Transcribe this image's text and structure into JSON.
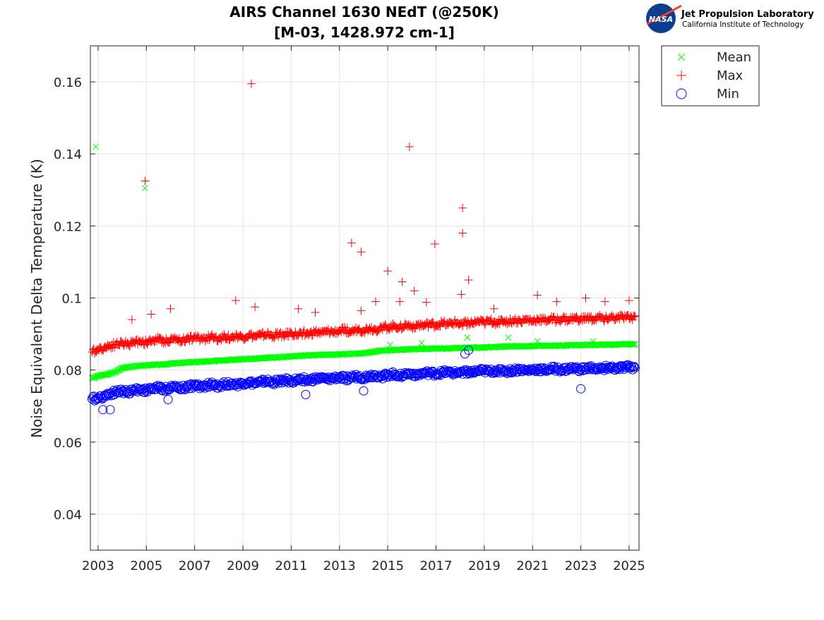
{
  "logo": {
    "org": "Jet Propulsion Laboratory",
    "sub": "California Institute of Technology",
    "mark": "NASA"
  },
  "chart_data": {
    "type": "scatter",
    "title": [
      "AIRS Channel 1630 NEdT (@250K)",
      "[M-03, 1428.972 cm-1]"
    ],
    "xlabel": "",
    "ylabel": "Noise Equivalent Delta Temperature (K)",
    "xlim": [
      2002.68,
      2025.41
    ],
    "ylim": [
      0.03,
      0.17
    ],
    "xticks": [
      2003,
      2005,
      2007,
      2009,
      2011,
      2013,
      2015,
      2017,
      2019,
      2021,
      2023,
      2025
    ],
    "yticks": [
      0.04,
      0.06,
      0.08,
      0.1,
      0.12,
      0.14,
      0.16
    ],
    "ytick_labels": [
      "0.04",
      "0.06",
      "0.08",
      "0.1",
      "0.12",
      "0.14",
      "0.16"
    ],
    "grid": true,
    "legend_placement": "outside-top-right",
    "x": [
      2002.75,
      2003,
      2003.25,
      2003.5,
      2003.75,
      2004,
      2004.25,
      2004.5,
      2004.75,
      2005,
      2005.25,
      2005.5,
      2005.75,
      2006,
      2006.25,
      2006.5,
      2006.75,
      2007,
      2007.25,
      2007.5,
      2007.75,
      2008,
      2008.25,
      2008.5,
      2008.75,
      2009,
      2009.25,
      2009.5,
      2009.75,
      2010,
      2010.25,
      2010.5,
      2010.75,
      2011,
      2011.25,
      2011.5,
      2011.75,
      2012,
      2012.25,
      2012.5,
      2012.75,
      2013,
      2013.25,
      2013.5,
      2013.75,
      2014,
      2014.25,
      2014.5,
      2014.75,
      2015,
      2015.25,
      2015.5,
      2015.75,
      2016,
      2016.25,
      2016.5,
      2016.75,
      2017,
      2017.25,
      2017.5,
      2017.75,
      2018,
      2018.25,
      2018.5,
      2018.75,
      2019,
      2019.25,
      2019.5,
      2019.75,
      2020,
      2020.25,
      2020.5,
      2020.75,
      2021,
      2021.25,
      2021.5,
      2021.75,
      2022,
      2022.25,
      2022.5,
      2022.75,
      2023,
      2023.25,
      2023.5,
      2023.75,
      2024,
      2024.25,
      2024.5,
      2024.75,
      2025,
      2025.25
    ],
    "series": [
      {
        "name": "Mean",
        "marker": "x",
        "color": "#00ff00",
        "values": [
          0.0778,
          0.0783,
          0.0787,
          0.079,
          0.0795,
          0.0805,
          0.0808,
          0.081,
          0.0812,
          0.0813,
          0.0814,
          0.0815,
          0.0816,
          0.0818,
          0.0819,
          0.082,
          0.0821,
          0.0822,
          0.0823,
          0.0824,
          0.0825,
          0.0826,
          0.0827,
          0.0828,
          0.0829,
          0.083,
          0.0831,
          0.0832,
          0.0833,
          0.0834,
          0.0835,
          0.0836,
          0.0837,
          0.0838,
          0.0839,
          0.084,
          0.0841,
          0.0842,
          0.0842,
          0.0843,
          0.0843,
          0.0844,
          0.0845,
          0.0845,
          0.0846,
          0.0847,
          0.0848,
          0.0852,
          0.0854,
          0.0855,
          0.0856,
          0.0856,
          0.0857,
          0.0858,
          0.0858,
          0.0859,
          0.0859,
          0.086,
          0.086,
          0.086,
          0.0861,
          0.0861,
          0.0862,
          0.0862,
          0.0863,
          0.0863,
          0.0864,
          0.0864,
          0.0865,
          0.0865,
          0.0866,
          0.0866,
          0.0866,
          0.0867,
          0.0867,
          0.0867,
          0.0868,
          0.0868,
          0.0868,
          0.0869,
          0.0869,
          0.0869,
          0.087,
          0.087,
          0.087,
          0.0871,
          0.0871,
          0.0871,
          0.0872,
          0.0872,
          0.0872
        ],
        "outliers": [
          [
            2002.9,
            0.142
          ],
          [
            2004.95,
            0.1305
          ],
          [
            2018.3,
            0.089
          ],
          [
            2020.0,
            0.089
          ],
          [
            2021.2,
            0.088
          ],
          [
            2023.5,
            0.088
          ],
          [
            2015.1,
            0.087
          ],
          [
            2016.4,
            0.0875
          ]
        ]
      },
      {
        "name": "Max",
        "marker": "+",
        "color": "#ff0000",
        "values": [
          0.085,
          0.0858,
          0.0862,
          0.0868,
          0.0872,
          0.0875,
          0.0872,
          0.0878,
          0.088,
          0.0876,
          0.0882,
          0.0885,
          0.088,
          0.0884,
          0.0887,
          0.0882,
          0.0888,
          0.089,
          0.0886,
          0.0889,
          0.0892,
          0.0887,
          0.0893,
          0.089,
          0.0895,
          0.0891,
          0.0897,
          0.0893,
          0.0896,
          0.0899,
          0.0894,
          0.09,
          0.0897,
          0.0902,
          0.0898,
          0.0904,
          0.09,
          0.0906,
          0.0902,
          0.0907,
          0.0905,
          0.0909,
          0.0911,
          0.0906,
          0.0913,
          0.091,
          0.0916,
          0.0912,
          0.092,
          0.0917,
          0.0922,
          0.0919,
          0.0925,
          0.0921,
          0.0926,
          0.0923,
          0.0928,
          0.0924,
          0.093,
          0.0926,
          0.0932,
          0.0928,
          0.0933,
          0.0929,
          0.0935,
          0.0931,
          0.0936,
          0.0932,
          0.0937,
          0.0934,
          0.0938,
          0.0935,
          0.094,
          0.0936,
          0.0941,
          0.0937,
          0.0942,
          0.0938,
          0.0943,
          0.0939,
          0.0944,
          0.094,
          0.0945,
          0.0941,
          0.0946,
          0.0942,
          0.0946,
          0.0943,
          0.0947,
          0.0944,
          0.0948
        ],
        "outliers": [
          [
            2004.95,
            0.1325
          ],
          [
            2009.35,
            0.1595
          ],
          [
            2015.9,
            0.142
          ],
          [
            2018.1,
            0.125
          ],
          [
            2018.1,
            0.118
          ],
          [
            2013.5,
            0.1153
          ],
          [
            2013.9,
            0.1128
          ],
          [
            2016.95,
            0.115
          ],
          [
            2015.0,
            0.1075
          ],
          [
            2015.6,
            0.1045
          ],
          [
            2016.1,
            0.102
          ],
          [
            2018.35,
            0.105
          ],
          [
            2018.05,
            0.101
          ],
          [
            2008.7,
            0.0993
          ],
          [
            2021.2,
            0.1008
          ],
          [
            2023.2,
            0.1
          ],
          [
            2005.2,
            0.0955
          ],
          [
            2006.0,
            0.097
          ],
          [
            2004.4,
            0.094
          ],
          [
            2009.5,
            0.0975
          ],
          [
            2014.5,
            0.099
          ],
          [
            2015.5,
            0.099
          ],
          [
            2016.6,
            0.0988
          ],
          [
            2019.4,
            0.097
          ],
          [
            2022.0,
            0.099
          ],
          [
            2024.0,
            0.099
          ],
          [
            2025.0,
            0.0993
          ],
          [
            2011.3,
            0.097
          ],
          [
            2012.0,
            0.096
          ],
          [
            2013.9,
            0.0965
          ]
        ]
      },
      {
        "name": "Min",
        "marker": "o",
        "color": "#0000ff",
        "values": [
          0.072,
          0.0723,
          0.0728,
          0.0735,
          0.074,
          0.0742,
          0.0738,
          0.0745,
          0.0747,
          0.0743,
          0.0749,
          0.0751,
          0.0747,
          0.0752,
          0.0754,
          0.075,
          0.0755,
          0.0757,
          0.0753,
          0.0758,
          0.076,
          0.0756,
          0.0761,
          0.0763,
          0.0759,
          0.0764,
          0.0766,
          0.0762,
          0.0767,
          0.0769,
          0.0765,
          0.077,
          0.0772,
          0.0768,
          0.0773,
          0.0775,
          0.0771,
          0.0776,
          0.0777,
          0.0774,
          0.0778,
          0.078,
          0.0776,
          0.0781,
          0.0782,
          0.0779,
          0.0784,
          0.0786,
          0.0782,
          0.0787,
          0.0788,
          0.0785,
          0.0789,
          0.079,
          0.0787,
          0.0791,
          0.0792,
          0.0789,
          0.0793,
          0.0794,
          0.0791,
          0.0795,
          0.0796,
          0.0793,
          0.0797,
          0.0798,
          0.0795,
          0.0799,
          0.0799,
          0.0796,
          0.08,
          0.0801,
          0.0798,
          0.0801,
          0.0802,
          0.0799,
          0.0803,
          0.0803,
          0.08,
          0.0804,
          0.0805,
          0.0801,
          0.0805,
          0.0806,
          0.0802,
          0.0806,
          0.0807,
          0.0803,
          0.0807,
          0.0808,
          0.0806
        ],
        "outliers": [
          [
            2003.2,
            0.069
          ],
          [
            2003.5,
            0.069
          ],
          [
            2018.2,
            0.0845
          ],
          [
            2018.35,
            0.0855
          ],
          [
            2005.9,
            0.0718
          ],
          [
            2011.6,
            0.0732
          ],
          [
            2014.0,
            0.0742
          ],
          [
            2023.0,
            0.0748
          ]
        ]
      }
    ]
  }
}
